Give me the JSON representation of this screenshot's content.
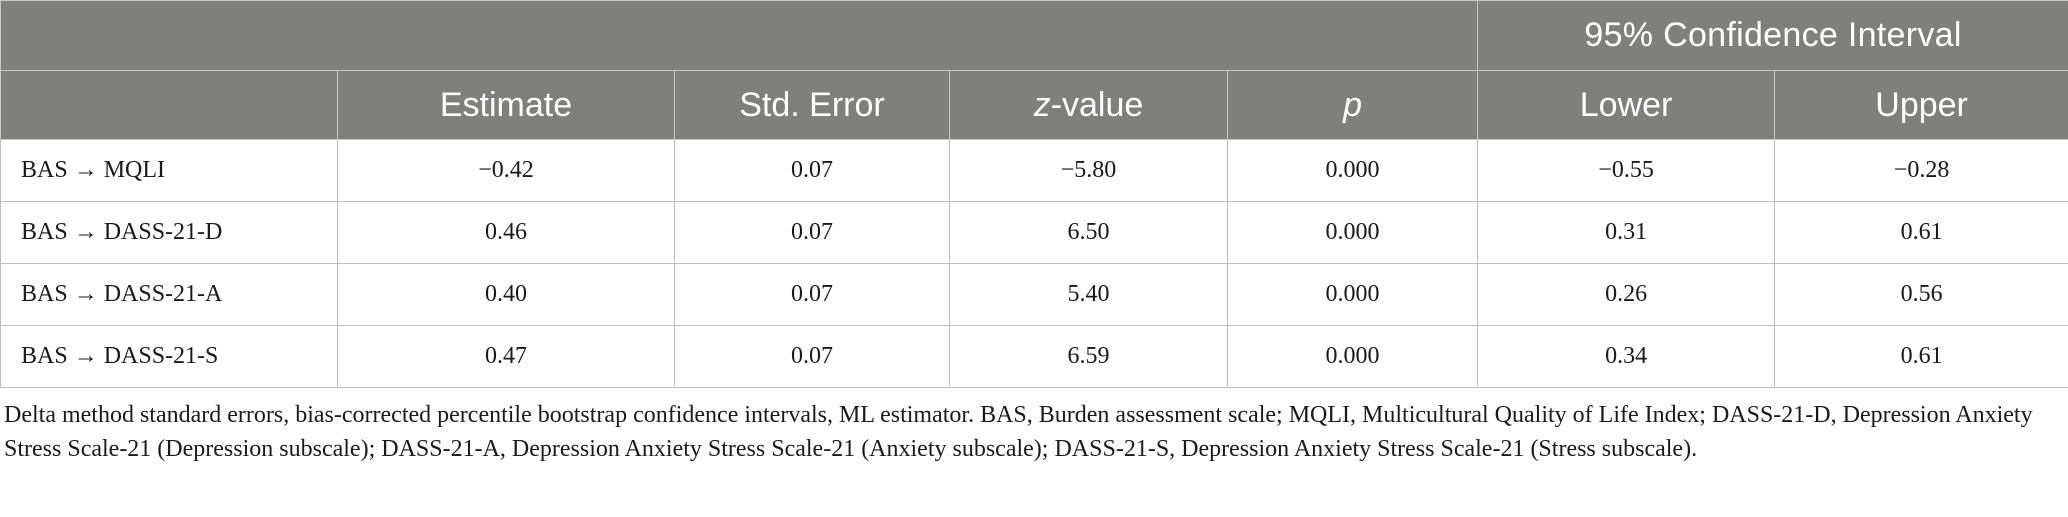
{
  "table": {
    "group_header": "95% Confidence Interval",
    "columns": {
      "estimate": "Estimate",
      "std_error": "Std. Error",
      "z_prefix": "z",
      "z_suffix": "-value",
      "p": "p",
      "lower": "Lower",
      "upper": "Upper"
    },
    "rows": [
      {
        "label": "BAS → MQLI",
        "estimate": "−0.42",
        "std_error": "0.07",
        "z": "−5.80",
        "p": "0.000",
        "lower": "−0.55",
        "upper": "−0.28"
      },
      {
        "label": "BAS → DASS-21-D",
        "estimate": "0.46",
        "std_error": "0.07",
        "z": "6.50",
        "p": "0.000",
        "lower": "0.31",
        "upper": "0.61"
      },
      {
        "label": "BAS → DASS-21-A",
        "estimate": "0.40",
        "std_error": "0.07",
        "z": "5.40",
        "p": "0.000",
        "lower": "0.26",
        "upper": "0.56"
      },
      {
        "label": "BAS → DASS-21-S",
        "estimate": "0.47",
        "std_error": "0.07",
        "z": "6.59",
        "p": "0.000",
        "lower": "0.34",
        "upper": "0.61"
      }
    ]
  },
  "footnote": "Delta method standard errors, bias-corrected percentile bootstrap confidence intervals, ML estimator. BAS, Burden assessment scale; MQLI, Multicultural Quality of Life Index; DASS-21-D, Depression Anxiety Stress Scale-21 (Depression subscale); DASS-21-A, Depression Anxiety Stress Scale-21 (Anxiety subscale); DASS-21-S, Depression Anxiety Stress Scale-21 (Stress subscale).",
  "colors": {
    "header_bg": "#7f7f7e",
    "header_text": "#ffffff",
    "border": "#bdbdbb"
  }
}
